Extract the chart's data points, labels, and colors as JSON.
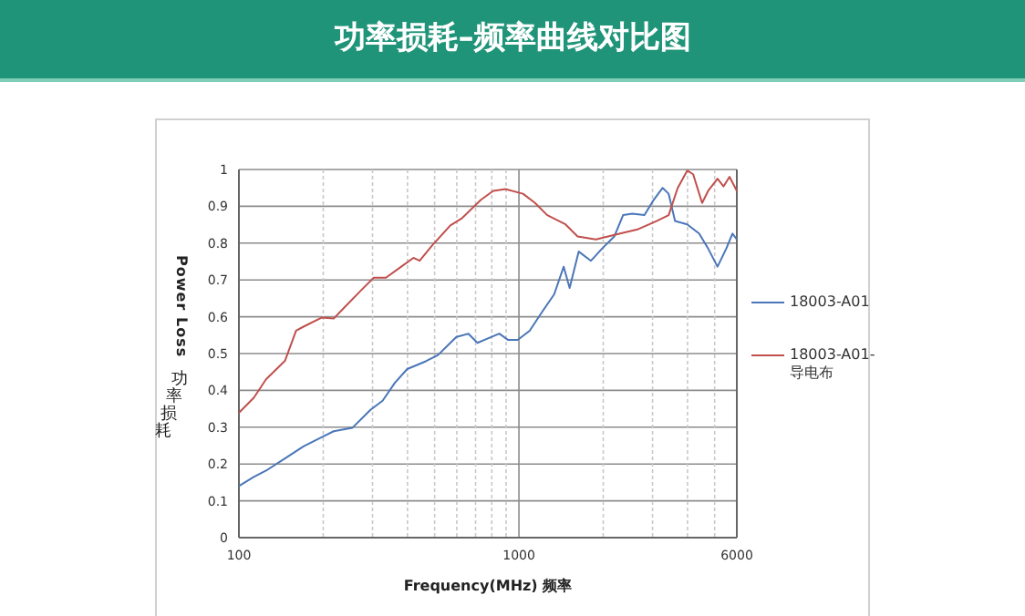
{
  "chart_data": {
    "type": "line",
    "title": "功率损耗–频率曲线对比图",
    "xlabel": "Frequency(MHz) 频率",
    "ylabel": "Power Loss 功率损耗",
    "log": "x",
    "grid": true,
    "legend": "right",
    "marker": "none",
    "line_style": "solid",
    "xlim": [
      100,
      6000
    ],
    "ylim": [
      0,
      1
    ],
    "xticks": [
      100,
      {
        "value": 200,
        "label": null
      },
      {
        "value": 300,
        "label": null
      },
      {
        "value": 400,
        "label": null
      },
      {
        "value": 500,
        "label": null
      },
      {
        "value": 600,
        "label": null
      },
      {
        "value": 700,
        "label": null
      },
      {
        "value": 800,
        "label": null
      },
      {
        "value": 900,
        "label": null
      },
      1000,
      {
        "value": 2000,
        "label": null
      },
      {
        "value": 3000,
        "label": null
      },
      {
        "value": 4000,
        "label": null
      },
      {
        "value": 5000,
        "label": null
      },
      6000
    ],
    "yticks": [
      0,
      0.1,
      0.2,
      0.3,
      0.4,
      0.5,
      0.6,
      0.7,
      0.8,
      0.9,
      1
    ],
    "series": [
      {
        "name": "18003-A01",
        "color": "#4a76b8",
        "x": [
          100,
          113,
          125,
          146,
          170,
          198,
          218,
          254,
          295,
          326,
          361,
          399,
          465,
          514,
          569,
          598,
          660,
          711,
          768,
          851,
          915,
          990,
          1092,
          1207,
          1336,
          1445,
          1517,
          1635,
          1808,
          1980,
          2190,
          2355,
          2540,
          2807,
          3025,
          3260,
          3425,
          3610,
          3990,
          4400,
          4740,
          5120,
          5500,
          5790,
          6000
        ],
        "values": [
          0.14,
          0.165,
          0.182,
          0.215,
          0.248,
          0.273,
          0.289,
          0.298,
          0.347,
          0.372,
          0.421,
          0.458,
          0.479,
          0.496,
          0.529,
          0.545,
          0.554,
          0.529,
          0.54,
          0.554,
          0.537,
          0.537,
          0.562,
          0.612,
          0.661,
          0.736,
          0.678,
          0.777,
          0.752,
          0.785,
          0.818,
          0.876,
          0.88,
          0.876,
          0.917,
          0.95,
          0.934,
          0.86,
          0.851,
          0.826,
          0.785,
          0.736,
          0.785,
          0.826,
          0.81
        ]
      },
      {
        "name": "18003-A01-导电布",
        "color": "#c0504d",
        "x": [
          100,
          113,
          125,
          146,
          160,
          170,
          198,
          218,
          240,
          274,
          303,
          335,
          380,
          420,
          442,
          489,
          569,
          627,
          730,
          809,
          895,
          1034,
          1142,
          1262,
          1466,
          1620,
          1882,
          2080,
          2300,
          2670,
          3100,
          3425,
          3690,
          3990,
          4190,
          4510,
          4740,
          5120,
          5380,
          5650,
          6000
        ],
        "values": [
          0.339,
          0.38,
          0.43,
          0.48,
          0.562,
          0.573,
          0.598,
          0.595,
          0.628,
          0.673,
          0.706,
          0.706,
          0.736,
          0.76,
          0.752,
          0.793,
          0.848,
          0.868,
          0.917,
          0.942,
          0.947,
          0.934,
          0.909,
          0.876,
          0.851,
          0.818,
          0.81,
          0.818,
          0.826,
          0.838,
          0.86,
          0.876,
          0.95,
          0.997,
          0.987,
          0.909,
          0.942,
          0.975,
          0.954,
          0.98,
          0.942
        ]
      }
    ]
  }
}
